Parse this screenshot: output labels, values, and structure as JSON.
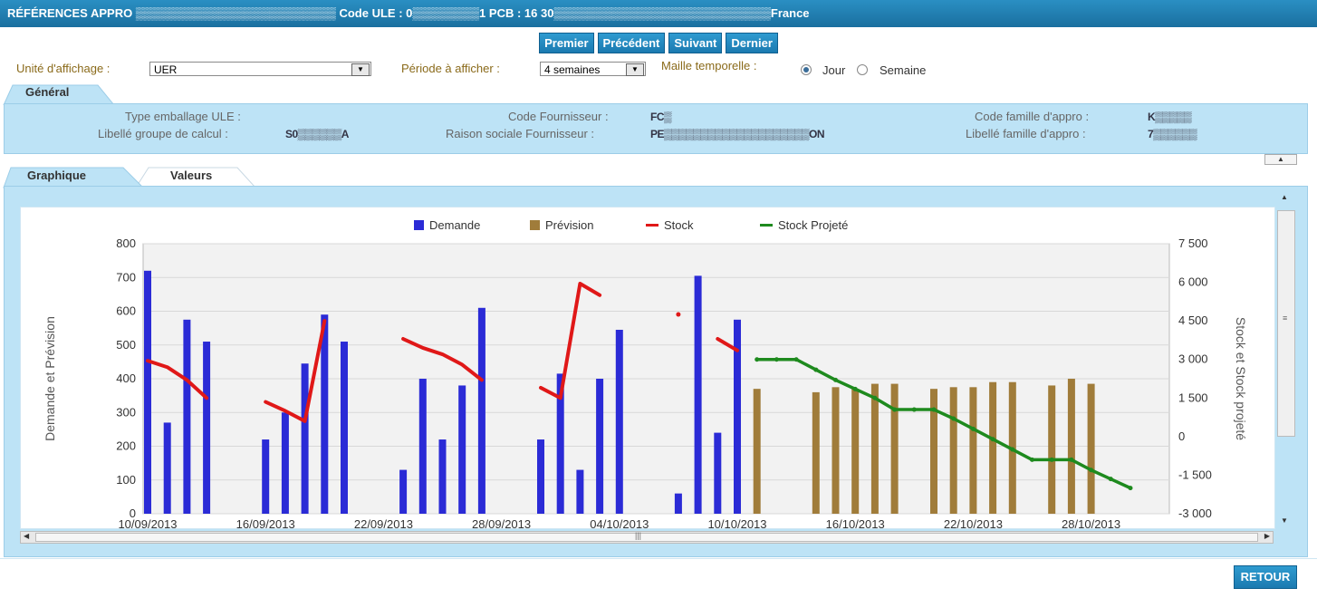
{
  "titlebar": {
    "text": "RÉFÉRENCES APPRO ▒▒▒▒▒▒▒▒▒▒▒▒▒▒▒▒▒▒▒▒▒▒▒▒ Code ULE : 0▒▒▒▒▒▒▒▒1 PCB : 16 30▒▒▒▒▒▒▒▒▒▒▒▒▒▒▒▒▒▒▒▒▒▒▒▒▒▒France"
  },
  "nav": {
    "first": "Premier",
    "prev": "Précédent",
    "next": "Suivant",
    "last": "Dernier"
  },
  "options": {
    "unit_label": "Unité d'affichage :",
    "unit_value": "UER",
    "period_label": "Période à afficher :",
    "period_value": "4 semaines",
    "granularity_label": "Maille temporelle :",
    "radio_day": "Jour",
    "radio_week": "Semaine",
    "selected": "Jour"
  },
  "general": {
    "tab": "Général",
    "fields": {
      "type_emballage_label": "Type emballage ULE :",
      "type_emballage_value": "",
      "libelle_groupe_label": "Libellé groupe de calcul :",
      "libelle_groupe_value": "S0▒▒▒▒▒▒A",
      "code_fournisseur_label": "Code Fournisseur :",
      "code_fournisseur_value": "FC▒",
      "raison_sociale_label": "Raison sociale Fournisseur :",
      "raison_sociale_value": "PE▒▒▒▒▒▒▒▒▒▒▒▒▒▒▒▒▒▒▒▒ON",
      "code_famille_label": "Code famille d'appro :",
      "code_famille_value": "K▒▒▒▒▒",
      "libelle_famille_label": "Libellé famille d'appro :",
      "libelle_famille_value": "7▒▒▒▒▒▒"
    }
  },
  "tabs": {
    "graph": "Graphique",
    "values": "Valeurs"
  },
  "colors": {
    "demande": "#2b2bd6",
    "prevision": "#a07c3a",
    "stock": "#e01818",
    "projete": "#1e8a1e"
  },
  "chart_data": {
    "type": "bar",
    "legend": [
      "Demande",
      "Prévision",
      "Stock",
      "Stock Projeté"
    ],
    "ylabel": "Demande et Prévision",
    "y2label": "Stock et Stock projeté",
    "ylim": [
      0,
      800
    ],
    "y2lim": [
      -3000,
      7500
    ],
    "yticks": [
      "0",
      "100",
      "200",
      "300",
      "400",
      "500",
      "600",
      "700",
      "800"
    ],
    "y2ticks": [
      "-3 000",
      "-1 500",
      "0",
      "1 500",
      "3 000",
      "4 500",
      "6 000",
      "7 500"
    ],
    "xticks": [
      "10/09/2013",
      "16/09/2013",
      "22/09/2013",
      "28/09/2013",
      "04/10/2013",
      "10/10/2013",
      "16/10/2013",
      "22/10/2013",
      "28/10/2013"
    ],
    "start_date": "10/09/2013",
    "demande": [
      [
        0,
        720
      ],
      [
        1,
        270
      ],
      [
        2,
        575
      ],
      [
        3,
        510
      ],
      [
        6,
        220
      ],
      [
        7,
        300
      ],
      [
        8,
        445
      ],
      [
        9,
        590
      ],
      [
        10,
        510
      ],
      [
        13,
        130
      ],
      [
        14,
        400
      ],
      [
        15,
        220
      ],
      [
        16,
        380
      ],
      [
        17,
        610
      ],
      [
        20,
        220
      ],
      [
        21,
        415
      ],
      [
        22,
        130
      ],
      [
        23,
        400
      ],
      [
        24,
        545
      ],
      [
        27,
        60
      ],
      [
        28,
        705
      ],
      [
        29,
        240
      ],
      [
        30,
        575
      ]
    ],
    "prevision": [
      [
        31,
        370
      ],
      [
        34,
        360
      ],
      [
        35,
        375
      ],
      [
        36,
        370
      ],
      [
        37,
        385
      ],
      [
        38,
        385
      ],
      [
        40,
        370
      ],
      [
        41,
        375
      ],
      [
        42,
        375
      ],
      [
        43,
        390
      ],
      [
        44,
        390
      ],
      [
        46,
        380
      ],
      [
        47,
        400
      ],
      [
        48,
        385
      ]
    ],
    "stock": [
      [
        [
          0,
          2950
        ],
        [
          1,
          2700
        ],
        [
          2,
          2200
        ],
        [
          3,
          1500
        ]
      ],
      [
        [
          6,
          1350
        ],
        [
          7,
          1000
        ],
        [
          8,
          600
        ],
        [
          9,
          4500
        ]
      ],
      [
        [
          13,
          3800
        ],
        [
          14,
          3450
        ],
        [
          15,
          3200
        ],
        [
          16,
          2800
        ],
        [
          17,
          2200
        ]
      ],
      [
        [
          20,
          1900
        ],
        [
          21,
          1500
        ],
        [
          22,
          5950
        ],
        [
          23,
          5500
        ]
      ],
      [
        [
          27,
          4750
        ]
      ],
      [
        [
          29,
          3800
        ],
        [
          30,
          3350
        ]
      ]
    ],
    "projete": [
      [
        31,
        3000
      ],
      [
        32,
        3000
      ],
      [
        33,
        3000
      ],
      [
        34,
        2600
      ],
      [
        35,
        2200
      ],
      [
        36,
        1850
      ],
      [
        37,
        1500
      ],
      [
        38,
        1050
      ],
      [
        39,
        1050
      ],
      [
        40,
        1050
      ],
      [
        41,
        700
      ],
      [
        42,
        300
      ],
      [
        43,
        -100
      ],
      [
        44,
        -500
      ],
      [
        45,
        -900
      ],
      [
        46,
        -900
      ],
      [
        47,
        -900
      ],
      [
        48,
        -1300
      ],
      [
        49,
        -1650
      ],
      [
        50,
        -2000
      ]
    ]
  },
  "footer": {
    "retour": "RETOUR"
  }
}
